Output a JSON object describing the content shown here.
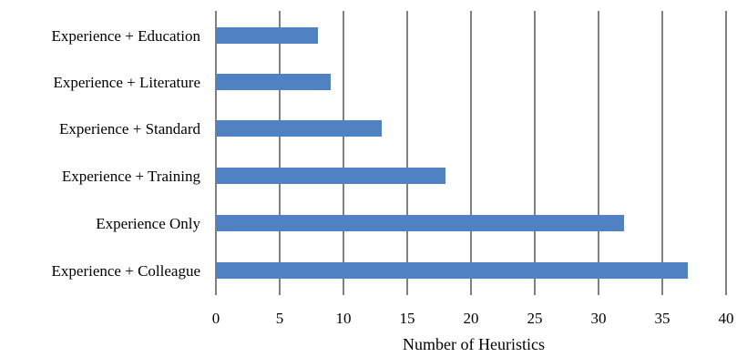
{
  "chart_data": {
    "type": "bar",
    "orientation": "horizontal",
    "categories": [
      "Experience + Education",
      "Experience + Literature",
      "Experience + Standard",
      "Experience + Training",
      "Experience Only",
      "Experience + Colleague"
    ],
    "values": [
      8,
      9,
      13,
      18,
      32,
      37
    ],
    "title": "",
    "xlabel": "Number of Heuristics",
    "ylabel": "",
    "xlim": [
      0,
      40
    ],
    "xticks": [
      "0",
      "5",
      "10",
      "15",
      "20",
      "25",
      "30",
      "35",
      "40"
    ],
    "grid": "vertical",
    "legend": "none",
    "bar_color": "#4f81c3",
    "grid_color": "#000000"
  }
}
